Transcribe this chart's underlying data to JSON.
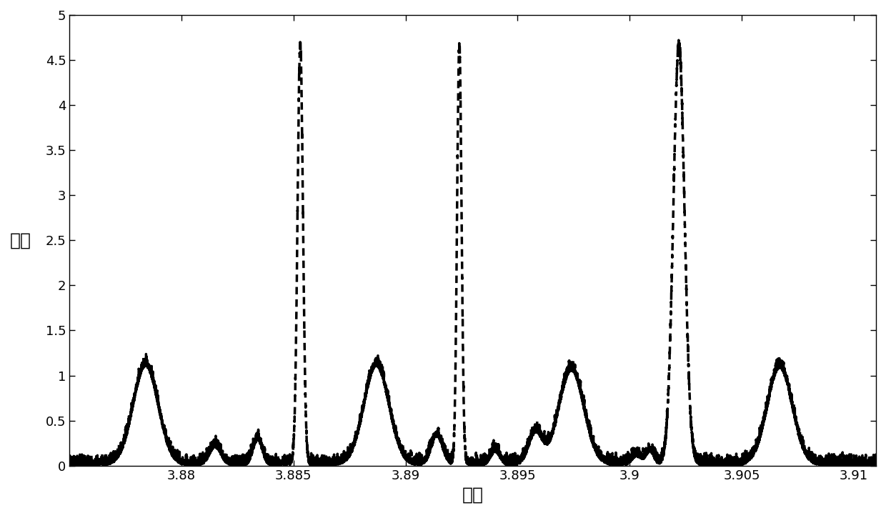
{
  "xlim": [
    3.875,
    3.911
  ],
  "ylim": [
    0,
    5
  ],
  "xticks": [
    3.88,
    3.885,
    3.89,
    3.895,
    3.9,
    3.905,
    3.91
  ],
  "yticks": [
    0,
    0.5,
    1,
    1.5,
    2,
    2.5,
    3,
    3.5,
    4,
    4.5,
    5
  ],
  "xlabel": "距离",
  "ylabel": "振幅",
  "background_color": "#ffffff",
  "line_color": "#000000",
  "peaks_major": [
    {
      "x": 3.8853,
      "amp": 4.63,
      "sigma": 0.00012
    },
    {
      "x": 3.8924,
      "amp": 4.63,
      "sigma": 0.0001
    },
    {
      "x": 3.9022,
      "amp": 4.63,
      "sigma": 0.00025
    }
  ],
  "peaks_minor": [
    {
      "x": 3.8784,
      "amp": 1.1,
      "sigma": 0.00055
    },
    {
      "x": 3.8887,
      "amp": 1.1,
      "sigma": 0.00055
    },
    {
      "x": 3.8974,
      "amp": 1.05,
      "sigma": 0.00055
    },
    {
      "x": 3.9067,
      "amp": 1.08,
      "sigma": 0.00055
    }
  ],
  "spurious": [
    {
      "x": 3.8815,
      "amp": 0.2,
      "sigma": 0.00025
    },
    {
      "x": 3.8834,
      "amp": 0.28,
      "sigma": 0.0002
    },
    {
      "x": 3.8914,
      "amp": 0.32,
      "sigma": 0.00025
    },
    {
      "x": 3.894,
      "amp": 0.15,
      "sigma": 0.0002
    },
    {
      "x": 3.8958,
      "amp": 0.35,
      "sigma": 0.0003
    },
    {
      "x": 3.9003,
      "amp": 0.1,
      "sigma": 0.0002
    },
    {
      "x": 3.9009,
      "amp": 0.15,
      "sigma": 0.00018
    }
  ],
  "noise_level": 0.06,
  "figsize": [
    12.4,
    7.18
  ],
  "dpi": 100,
  "linewidth": 2.5,
  "dash_on": 3,
  "dash_off": 2
}
